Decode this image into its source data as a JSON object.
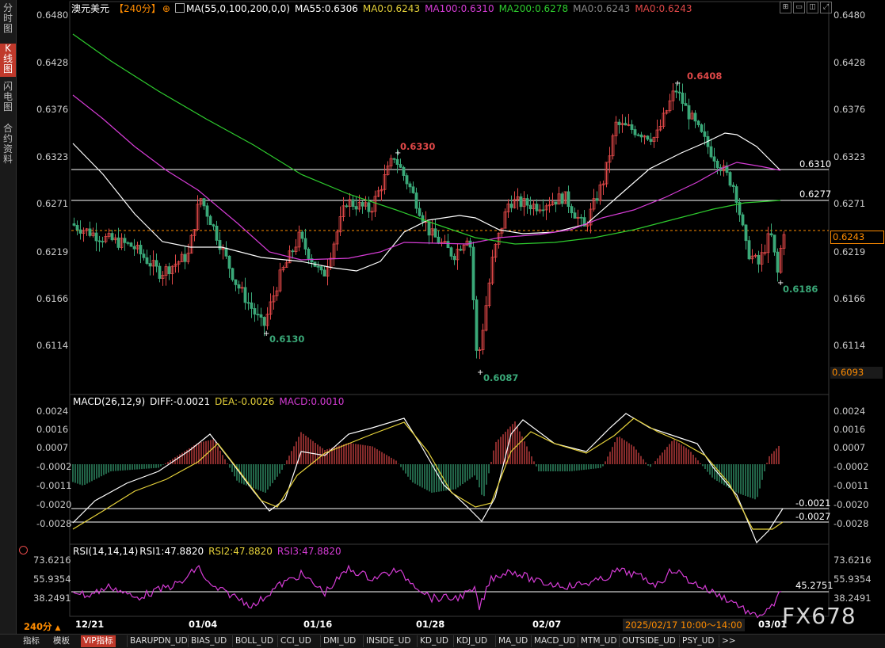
{
  "left_nav": [
    {
      "label": "分\n时\n图",
      "active": false
    },
    {
      "label": "K\n线\n图",
      "active": true
    },
    {
      "label": "闪\n电\n图",
      "active": false
    },
    {
      "label": "合\n约\n资\n料",
      "active": false
    }
  ],
  "header": {
    "symbol": "澳元美元",
    "period": "【240分】",
    "ma_label": "MA(55,0,100,200,0,0)",
    "ma55": "MA55:0.6306",
    "ma0a": "MA0:0.6243",
    "ma100": "MA100:0.6310",
    "ma200": "MA200:0.6278",
    "ma0b": "MA0:0.6243",
    "ma0c": "MA0:0.6243"
  },
  "price_axis": {
    "ticks": [
      "0.6480",
      "0.6428",
      "0.6376",
      "0.6323",
      "0.6271",
      "0.6219",
      "0.6166",
      "0.6114"
    ],
    "current_price": "0.6243",
    "low_marker": "0.6093"
  },
  "annotations": {
    "high": "0.6408",
    "low1": "0.6130",
    "low2": "0.6087",
    "low3": "0.6186",
    "peak2": "0.6330",
    "hline1": "0.6310",
    "hline2": "0.6277"
  },
  "macd": {
    "title": "MACD(26,12,9)",
    "diff": "DIFF:-0.0021",
    "dea": "DEA:-0.0026",
    "macd": "MACD:0.0010",
    "ticks": [
      "0.0024",
      "0.0016",
      "0.0007",
      "-0.0002",
      "-0.0011",
      "-0.0020",
      "-0.0028"
    ],
    "line1": "-0.0021",
    "line2": "-0.0027"
  },
  "rsi": {
    "title": "RSI(14,14,14)",
    "rsi1": "RSI1:47.8820",
    "rsi2": "RSI2:47.8820",
    "rsi3": "RSI3:47.8820",
    "ticks": [
      "73.6216",
      "55.9354",
      "38.2491"
    ],
    "line": "45.2751"
  },
  "x_axis": {
    "period": "240分",
    "labels": [
      "12/21",
      "01/04",
      "01/16",
      "01/28",
      "02/07",
      "03/01"
    ],
    "time_range": "2025/02/17 10:00～14:00"
  },
  "watermark": "FX678",
  "bottom_tabs": [
    "指标",
    "模板",
    "VIP指标",
    "BARUPDN_UD",
    "BIAS_UD",
    "BOLL_UD",
    "CCI_UD",
    "DMI_UD",
    "INSIDE_UD",
    "KD_UD",
    "KDJ_UD",
    "MA_UD",
    "MACD_UD",
    "MTM_UD",
    "OUTSIDE_UD",
    "PSY_UD",
    ">>"
  ],
  "colors": {
    "up": "#e04848",
    "down": "#3aa878",
    "ma55": "#ffffff",
    "ma100": "#d63cd6",
    "ma200": "#2ecc2e",
    "yellow": "#e6d23a",
    "accent": "#ff8c00"
  }
}
